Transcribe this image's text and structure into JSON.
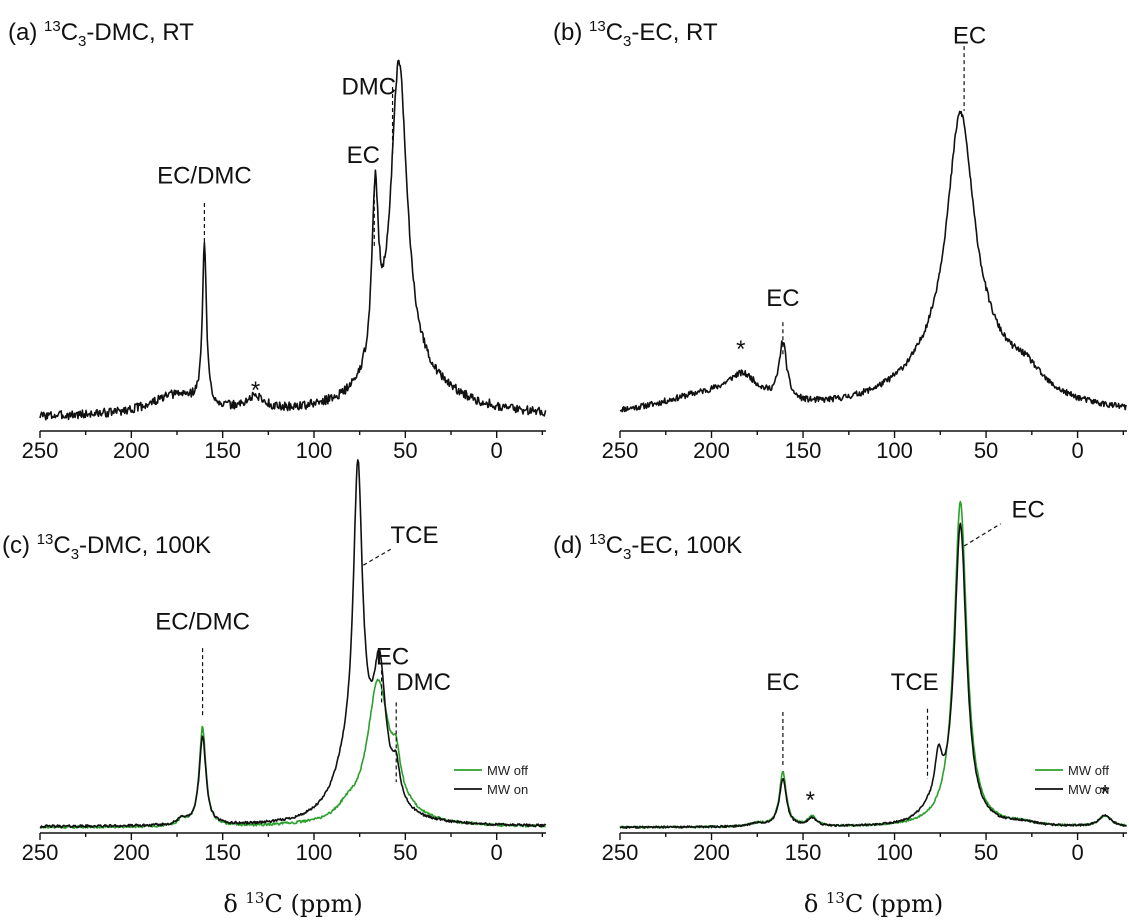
{
  "colors": {
    "mw_off": "#2ca02c",
    "mw_on": "#111111",
    "single": "#111111"
  },
  "chart_data": [
    {
      "type": "line",
      "title": "(a) ¹³C₃-DMC, RT",
      "title_parts": {
        "pre": "(a) ",
        "sup": "13",
        "main": "C",
        "sub": "3",
        "post": "-DMC, RT"
      },
      "xlabel": "",
      "xlim": [
        250,
        -27
      ],
      "ylim": [
        0,
        1.05
      ],
      "xticks": [
        250,
        200,
        150,
        100,
        50,
        0
      ],
      "xtick_labels": [
        "250",
        "200",
        "150",
        "100",
        "50",
        "0"
      ],
      "series": [
        {
          "color": "mw_on",
          "noise": 0.013,
          "seed": 3,
          "baseline": 0.03,
          "peaks": [
            [
              160,
              0.47,
              1.3
            ],
            [
              132,
              0.04,
              6
            ],
            [
              175,
              0.06,
              18
            ],
            [
              66.5,
              0.5,
              2.2
            ],
            [
              53.5,
              0.93,
              5.5
            ],
            [
              48,
              0.1,
              28
            ]
          ]
        }
      ],
      "annotations": [
        {
          "text": "EC/DMC",
          "x": 160,
          "label_x": 160,
          "label_y": 0.7,
          "line_top": 0.66,
          "line_bottom": 0.49
        },
        {
          "text": "*",
          "x": 132,
          "label_x": 132,
          "label_y": 0.07,
          "line_top": null,
          "line_bottom": null
        },
        {
          "text": "EC",
          "x": 67,
          "label_x": 73,
          "label_y": 0.76,
          "line_top": 0.71,
          "line_bottom": 0.53
        },
        {
          "text": "DMC",
          "x": 57,
          "label_x": 70,
          "label_y": 0.96,
          "line_top": 1.0,
          "line_bottom": 0.8
        }
      ],
      "legend": null
    },
    {
      "type": "line",
      "title": "(b) ¹³C₃-EC, RT",
      "title_parts": {
        "pre": "(b) ",
        "sup": "13",
        "main": "C",
        "sub": "3",
        "post": "-EC, RT"
      },
      "xlabel": "",
      "xlim": [
        250,
        -27
      ],
      "ylim": [
        0,
        1.05
      ],
      "xticks": [
        250,
        200,
        150,
        100,
        50,
        0
      ],
      "xtick_labels": [
        "250",
        "200",
        "150",
        "100",
        "50",
        "0"
      ],
      "series": [
        {
          "color": "mw_on",
          "noise": 0.009,
          "seed": 11,
          "baseline": 0.03,
          "peaks": [
            [
              183,
              0.08,
              11
            ],
            [
              205,
              0.05,
              30
            ],
            [
              161,
              0.17,
              2.5
            ],
            [
              64,
              0.67,
              8.5
            ],
            [
              62,
              0.22,
              30
            ],
            [
              28,
              0.05,
              10
            ]
          ]
        }
      ],
      "annotations": [
        {
          "text": "EC",
          "x": 161,
          "label_x": 161,
          "label_y": 0.34,
          "line_top": 0.31,
          "line_bottom": 0.21
        },
        {
          "text": "*",
          "x": 184,
          "label_x": 184,
          "label_y": 0.19,
          "line_top": null,
          "line_bottom": null
        },
        {
          "text": "EC",
          "x": 62,
          "label_x": 59,
          "label_y": 1.11,
          "line_top": 1.12,
          "line_bottom": 0.93
        }
      ],
      "legend": null
    },
    {
      "type": "line",
      "title": "(c) ¹³C₃-DMC, 100K",
      "title_parts": {
        "pre": "(c) ",
        "sup": "13",
        "main": "C",
        "sub": "3",
        "post": "-DMC, 100K"
      },
      "xlabel": "δ ¹³C (ppm)",
      "xlabel_parts": {
        "pre": "δ ",
        "sup": "13",
        "post": "C (ppm)"
      },
      "xlim": [
        250,
        -27
      ],
      "ylim": [
        0,
        1.05
      ],
      "xticks": [
        250,
        200,
        150,
        100,
        50,
        0
      ],
      "xtick_labels": [
        "250",
        "200",
        "150",
        "100",
        "50",
        "0"
      ],
      "series": [
        {
          "name": "MW off",
          "color": "mw_off",
          "noise": 0.004,
          "seed": 21,
          "baseline": 0.008,
          "peaks": [
            [
              161,
              0.31,
              2.2
            ],
            [
              172,
              0.02,
              3
            ],
            [
              65,
              0.4,
              7
            ],
            [
              55,
              0.1,
              2.5
            ],
            [
              82,
              0.03,
              6
            ],
            [
              60,
              0.06,
              14
            ]
          ]
        },
        {
          "name": "MW on",
          "color": "mw_on",
          "noise": 0.004,
          "seed": 42,
          "baseline": 0.01,
          "peaks": [
            [
              161,
              0.28,
              2.2
            ],
            [
              172,
              0.02,
              3
            ],
            [
              76,
              0.93,
              3.0
            ],
            [
              82,
              0.13,
              10
            ],
            [
              64,
              0.37,
              4
            ],
            [
              55,
              0.1,
              2.5
            ],
            [
              70,
              0.12,
              10
            ]
          ]
        }
      ],
      "annotations": [
        {
          "text": "EC/DMC",
          "x": 161,
          "label_x": 161,
          "label_y": 0.61,
          "line_top": 0.57,
          "line_bottom": 0.36
        },
        {
          "text": "TCE",
          "x": 73,
          "label_x": 45,
          "label_y": 0.88,
          "line_top": null,
          "line_bottom": null,
          "leader": [
            [
              73,
              0.83
            ],
            [
              58,
              0.88
            ]
          ]
        },
        {
          "text": "EC",
          "x": 63,
          "label_x": 57,
          "label_y": 0.5,
          "line_top": 0.5,
          "line_bottom": 0.4
        },
        {
          "text": "DMC",
          "x": 55,
          "label_x": 40,
          "label_y": 0.42,
          "line_top": 0.4,
          "line_bottom": 0.15
        }
      ],
      "legend": {
        "position": "bottom-right",
        "entries": [
          "MW off",
          "MW on"
        ]
      }
    },
    {
      "type": "line",
      "title": "(d) ¹³C₃-EC, 100K",
      "title_parts": {
        "pre": "(d) ",
        "sup": "13",
        "main": "C",
        "sub": "3",
        "post": "-EC, 100K"
      },
      "xlabel": "δ ¹³C (ppm)",
      "xlabel_parts": {
        "pre": "δ ",
        "sup": "13",
        "post": "C (ppm)"
      },
      "xlim": [
        250,
        -27
      ],
      "ylim": [
        0,
        1.05
      ],
      "xticks": [
        250,
        200,
        150,
        100,
        50,
        0
      ],
      "xtick_labels": [
        "250",
        "200",
        "150",
        "100",
        "50",
        "0"
      ],
      "series": [
        {
          "name": "MW off",
          "color": "mw_off",
          "noise": 0.003,
          "seed": 7,
          "baseline": 0.008,
          "peaks": [
            [
              161,
              0.17,
              2.3
            ],
            [
              145,
              0.03,
              3
            ],
            [
              64,
              1.02,
              4.2
            ],
            [
              -15,
              0.035,
              4
            ],
            [
              30,
              0.01,
              8
            ],
            [
              175,
              0.01,
              6
            ]
          ]
        },
        {
          "name": "MW on",
          "color": "mw_on",
          "noise": 0.003,
          "seed": 77,
          "baseline": 0.008,
          "peaks": [
            [
              161,
              0.15,
              2.3
            ],
            [
              145,
              0.025,
              3
            ],
            [
              64,
              0.94,
              4.0
            ],
            [
              76,
              0.15,
              2.5
            ],
            [
              82,
              0.03,
              6
            ],
            [
              -15,
              0.035,
              4
            ],
            [
              30,
              0.01,
              8
            ],
            [
              175,
              0.01,
              6
            ]
          ]
        }
      ],
      "annotations": [
        {
          "text": "EC",
          "x": 161,
          "label_x": 161,
          "label_y": 0.42,
          "line_top": 0.37,
          "line_bottom": 0.2
        },
        {
          "text": "*",
          "x": 146,
          "label_x": 146,
          "label_y": 0.05,
          "line_top": null,
          "line_bottom": null
        },
        {
          "text": "TCE",
          "x": 82,
          "label_x": 89,
          "label_y": 0.42,
          "line_top": 0.38,
          "line_bottom": 0.16
        },
        {
          "text": "EC",
          "x": 62,
          "label_x": 27,
          "label_y": 0.96,
          "line_top": null,
          "line_bottom": null,
          "leader": [
            [
              62,
              0.89
            ],
            [
              42,
              0.96
            ]
          ]
        },
        {
          "text": "*",
          "x": -15,
          "label_x": -15,
          "label_y": 0.07,
          "line_top": null,
          "line_bottom": null
        }
      ],
      "legend": {
        "position": "bottom-right",
        "entries": [
          "MW off",
          "MW on"
        ]
      }
    }
  ]
}
